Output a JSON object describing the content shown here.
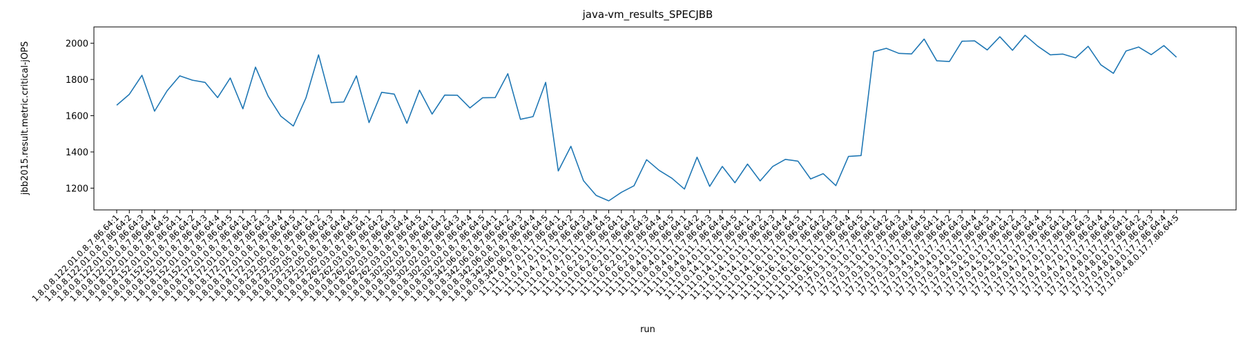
{
  "chart_data": {
    "type": "line",
    "title": "java-vm_results_SPECJBB",
    "xlabel": "run",
    "ylabel": "jbb2015.result.metric.critical-jOPS",
    "ylim": [
      1080,
      2090
    ],
    "yticks": [
      1200,
      1400,
      1600,
      1800,
      2000
    ],
    "grid": false,
    "series_color": "#1f77b4",
    "categories": [
      "1.8.0.8.122.01.0.8.7.86.64:1",
      "1.8.0.8.122.01.0.8.7.86.64:2",
      "1.8.0.8.122.01.0.8.7.86.64:3",
      "1.8.0.8.122.01.0.8.7.86.64:4",
      "1.8.0.8.122.01.0.8.7.86.64:5",
      "1.8.0.8.152.01.0.8.7.86.64:1",
      "1.8.0.8.152.01.0.8.7.86.64:2",
      "1.8.0.8.152.01.0.8.7.86.64:3",
      "1.8.0.8.152.01.0.8.7.86.64:4",
      "1.8.0.8.152.01.0.8.7.86.64:5",
      "1.8.0.8.172.01.0.8.7.86.64:1",
      "1.8.0.8.172.01.0.8.7.86.64:2",
      "1.8.0.8.172.01.0.8.7.86.64:3",
      "1.8.0.8.172.01.0.8.7.86.64:4",
      "1.8.0.8.172.01.0.8.7.86.64:5",
      "1.8.0.8.232.05.0.8.7.86.64:1",
      "1.8.0.8.232.05.0.8.7.86.64:2",
      "1.8.0.8.232.05.0.8.7.86.64:3",
      "1.8.0.8.232.05.0.8.7.86.64:4",
      "1.8.0.8.232.05.0.8.7.86.64:5",
      "1.8.0.8.262.03.0.8.7.86.64:1",
      "1.8.0.8.262.03.0.8.7.86.64:2",
      "1.8.0.8.262.03.0.8.7.86.64:3",
      "1.8.0.8.262.03.0.8.7.86.64:4",
      "1.8.0.8.262.03.0.8.7.86.64:5",
      "1.8.0.8.302.02.0.8.7.86.64:1",
      "1.8.0.8.302.02.0.8.7.86.64:2",
      "1.8.0.8.302.02.0.8.7.86.64:3",
      "1.8.0.8.302.02.0.8.7.86.64:4",
      "1.8.0.8.302.02.0.8.7.86.64:5",
      "1.8.0.8.342.06.0.8.7.86.64:1",
      "1.8.0.8.342.06.0.8.7.86.64:2",
      "1.8.0.8.342.06.0.8.7.86.64:3",
      "1.8.0.8.342.06.0.8.7.86.64:4",
      "1.8.0.8.342.06.0.8.7.86.64:5",
      "11.11.0.4.7.0.11.7.86.64:1",
      "11.11.0.4.7.0.11.7.86.64:2",
      "11.11.0.4.7.0.11.7.86.64:3",
      "11.11.0.4.7.0.11.7.86.64:4",
      "11.11.0.4.7.0.11.7.86.64:5",
      "11.11.0.6.2.0.11.7.86.64:1",
      "11.11.0.6.2.0.11.7.86.64:2",
      "11.11.0.6.2.0.11.7.86.64:3",
      "11.11.0.6.2.0.11.7.86.64:4",
      "11.11.0.6.2.0.11.7.86.64:5",
      "11.11.0.8.4.0.11.7.86.64:1",
      "11.11.0.8.4.0.11.7.86.64:2",
      "11.11.0.8.4.0.11.7.86.64:3",
      "11.11.0.8.4.0.11.7.86.64:4",
      "11.11.0.8.4.0.11.7.86.64:5",
      "11.11.0.14.1.0.11.7.86.64:1",
      "11.11.0.14.1.0.11.7.86.64:2",
      "11.11.0.14.1.0.11.7.86.64:3",
      "11.11.0.14.1.0.11.7.86.64:4",
      "11.11.0.14.1.0.11.7.86.64:5",
      "11.11.0.16.1.0.11.7.86.64:1",
      "11.11.0.16.1.0.11.7.86.64:2",
      "11.11.0.16.1.0.11.7.86.64:3",
      "11.11.0.16.1.0.11.7.86.64:4",
      "11.11.0.16.1.0.11.7.86.64:5",
      "17.17.0.3.1.0.17.7.86.64:1",
      "17.17.0.3.1.0.17.7.86.64:2",
      "17.17.0.3.1.0.17.7.86.64:3",
      "17.17.0.3.1.0.17.7.86.64:4",
      "17.17.0.3.1.0.17.7.86.64:5",
      "17.17.0.3.4.0.17.7.86.64:1",
      "17.17.0.3.4.0.17.7.86.64:2",
      "17.17.0.3.4.0.17.7.86.64:3",
      "17.17.0.3.4.0.17.7.86.64:4",
      "17.17.0.3.4.0.17.7.86.64:5",
      "17.17.0.4.5.0.17.7.86.64:1",
      "17.17.0.4.5.0.17.7.86.64:2",
      "17.17.0.4.5.0.17.7.86.64:3",
      "17.17.0.4.5.0.17.7.86.64:4",
      "17.17.0.4.5.0.17.7.86.64:5",
      "17.17.0.4.7.0.17.7.86.64:1",
      "17.17.0.4.7.0.17.7.86.64:2",
      "17.17.0.4.7.0.17.7.86.64:3",
      "17.17.0.4.7.0.17.7.86.64:4",
      "17.17.0.4.7.0.17.7.86.64:5",
      "17.17.0.4.8.0.17.7.86.64:1",
      "17.17.0.4.8.0.17.7.86.64:2",
      "17.17.0.4.8.0.17.7.86.64:3",
      "17.17.0.4.8.0.17.7.86.64:4",
      "17.17.0.4.8.0.17.7.86.64:5"
    ],
    "values": [
      1658,
      1718,
      1823,
      1625,
      1738,
      1820,
      1796,
      1784,
      1700,
      1808,
      1638,
      1868,
      1708,
      1598,
      1543,
      1698,
      1936,
      1672,
      1676,
      1820,
      1562,
      1729,
      1719,
      1558,
      1741,
      1609,
      1714,
      1713,
      1643,
      1699,
      1700,
      1832,
      1580,
      1595,
      1784,
      1295,
      1431,
      1241,
      1160,
      1130,
      1177,
      1213,
      1357,
      1298,
      1255,
      1195,
      1371,
      1210,
      1320,
      1230,
      1333,
      1240,
      1320,
      1359,
      1349,
      1251,
      1280,
      1214,
      1375,
      1380,
      1953,
      1972,
      1944,
      1941,
      2023,
      1903,
      1899,
      2011,
      2013,
      1963,
      2036,
      1961,
      2044,
      1984,
      1936,
      1940,
      1919,
      1983,
      1881,
      1834,
      1957,
      1979,
      1937,
      1987,
      1923
    ]
  }
}
